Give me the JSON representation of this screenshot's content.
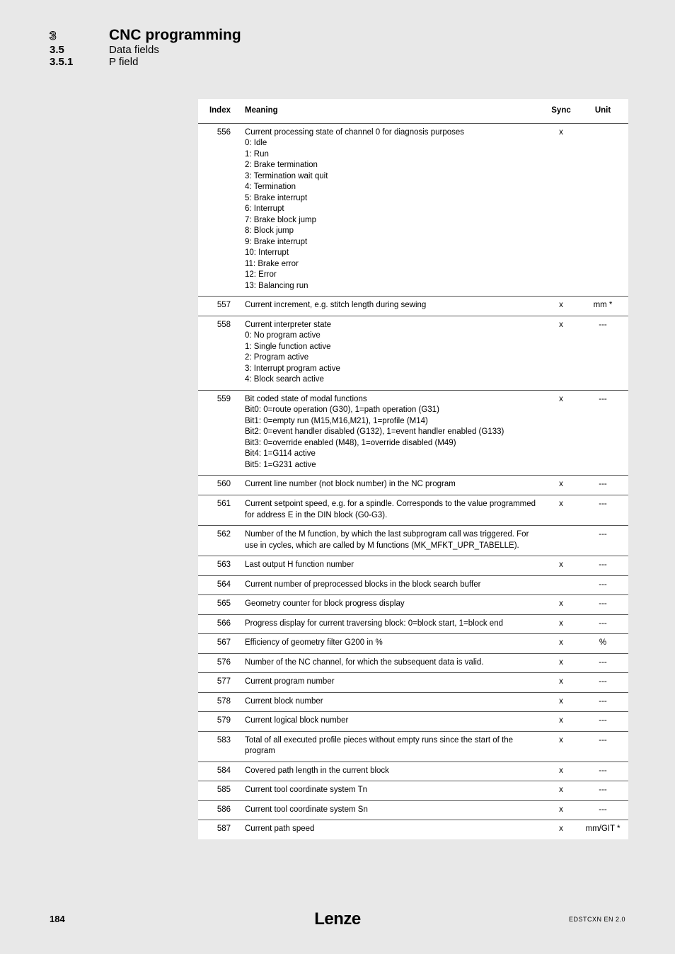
{
  "header": {
    "sec_num_main": "3",
    "sec_num_sub1": "3.5",
    "sec_num_sub2": "3.5.1",
    "title_main": "CNC programming",
    "title_sub1": "Data fields",
    "title_sub2": "P field"
  },
  "table": {
    "columns": {
      "index": "Index",
      "meaning": "Meaning",
      "sync": "Sync",
      "unit": "Unit"
    },
    "rows": [
      {
        "index": "556",
        "meaning": [
          "Current processing state of channel 0 for diagnosis purposes",
          "0: Idle",
          "1: Run",
          "2: Brake termination",
          "3: Termination wait quit",
          "4: Termination",
          "5: Brake interrupt",
          "6: Interrupt",
          "7: Brake block jump",
          "8: Block jump",
          "9: Brake interrupt",
          "10: Interrupt",
          "11: Brake error",
          "12: Error",
          "13: Balancing run"
        ],
        "sync": "x",
        "unit": ""
      },
      {
        "index": "557",
        "meaning": [
          "Current increment, e.g. stitch length during sewing"
        ],
        "sync": "x",
        "unit": "mm *"
      },
      {
        "index": "558",
        "meaning": [
          "Current interpreter state",
          "0: No program active",
          "1: Single function active",
          "2: Program active",
          "3: Interrupt program active",
          "4: Block search active"
        ],
        "sync": "x",
        "unit": "---"
      },
      {
        "index": "559",
        "meaning": [
          "Bit coded state of modal functions",
          "Bit0: 0=route operation (G30), 1=path operation (G31)",
          "Bit1: 0=empty run (M15,M16,M21), 1=profile (M14)",
          "Bit2: 0=event handler disabled (G132), 1=event handler enabled (G133)",
          "Bit3: 0=override enabled (M48), 1=override disabled (M49)",
          "Bit4: 1=G114 active",
          "Bit5: 1=G231 active"
        ],
        "sync": "x",
        "unit": "---"
      },
      {
        "index": "560",
        "meaning": [
          "Current line number (not block number) in the NC program"
        ],
        "sync": "x",
        "unit": "---"
      },
      {
        "index": "561",
        "meaning": [
          "Current setpoint speed, e.g. for a spindle. Corresponds to the value programmed for address E in the DIN block (G0-G3)."
        ],
        "sync": "x",
        "unit": "---"
      },
      {
        "index": "562",
        "meaning": [
          "Number of the M function, by which the last subprogram call was triggered. For use in cycles, which are called by M functions (MK_MFKT_UPR_TABELLE)."
        ],
        "sync": "",
        "unit": "---"
      },
      {
        "index": "563",
        "meaning": [
          "Last output H function number"
        ],
        "sync": "x",
        "unit": "---"
      },
      {
        "index": "564",
        "meaning": [
          "Current number of preprocessed blocks in the block search buffer"
        ],
        "sync": "",
        "unit": "---"
      },
      {
        "index": "565",
        "meaning": [
          "Geometry counter for block progress display"
        ],
        "sync": "x",
        "unit": "---"
      },
      {
        "index": "566",
        "meaning": [
          "Progress display for current traversing block: 0=block start, 1=block end"
        ],
        "sync": "x",
        "unit": "---"
      },
      {
        "index": "567",
        "meaning": [
          "Efficiency of geometry filter G200 in %"
        ],
        "sync": "x",
        "unit": "%"
      },
      {
        "index": "576",
        "meaning": [
          "Number of the NC channel, for which the subsequent data is valid."
        ],
        "sync": "x",
        "unit": "---"
      },
      {
        "index": "577",
        "meaning": [
          "Current program number"
        ],
        "sync": "x",
        "unit": "---"
      },
      {
        "index": "578",
        "meaning": [
          "Current block number"
        ],
        "sync": "x",
        "unit": "---"
      },
      {
        "index": "579",
        "meaning": [
          "Current logical block number"
        ],
        "sync": "x",
        "unit": "---"
      },
      {
        "index": "583",
        "meaning": [
          "Total of all executed profile pieces without empty runs since the start of the program"
        ],
        "sync": "x",
        "unit": "---"
      },
      {
        "index": "584",
        "meaning": [
          "Covered path length in the current block"
        ],
        "sync": "x",
        "unit": "---"
      },
      {
        "index": "585",
        "meaning": [
          "Current tool coordinate system Tn"
        ],
        "sync": "x",
        "unit": "---"
      },
      {
        "index": "586",
        "meaning": [
          "Current tool coordinate system Sn"
        ],
        "sync": "x",
        "unit": "---"
      },
      {
        "index": "587",
        "meaning": [
          "Current path speed"
        ],
        "sync": "x",
        "unit": "mm/GIT *"
      }
    ]
  },
  "footer": {
    "page": "184",
    "logo": "Lenze",
    "doc_id": "EDSTCXN EN 2.0"
  }
}
